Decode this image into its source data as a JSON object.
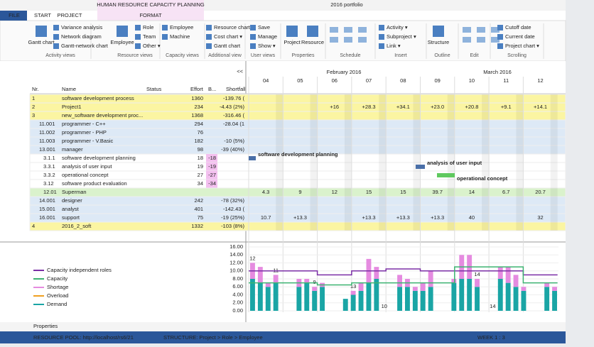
{
  "window": {
    "title": "2016 portfolio",
    "context_tab": "HUMAN RESOURCE CAPACITY PLANNING"
  },
  "tabs": [
    "FILE",
    "START",
    "PROJECT",
    "FORMAT"
  ],
  "ribbon_groups": [
    {
      "label": "Activity views",
      "items": [
        "Gantt chart",
        "Variance analysis",
        "Network diagram",
        "Gantt-network chart"
      ]
    },
    {
      "label": "Resource views",
      "items": [
        "Employee",
        "Role",
        "Team",
        "Other ▾"
      ]
    },
    {
      "label": "Capacity views",
      "items": [
        "Employee",
        "Machine"
      ]
    },
    {
      "label": "Additional view",
      "items": [
        "Resource chart ▾",
        "Cost chart ▾",
        "Gantt chart"
      ]
    },
    {
      "label": "User views",
      "items": [
        "Save",
        "Manage",
        "Show ▾"
      ]
    },
    {
      "label": "Properties",
      "items": [
        "Project",
        "Resource"
      ]
    },
    {
      "label": "Schedule",
      "items": []
    },
    {
      "label": "Insert",
      "items": [
        "Activity ▾",
        "Subproject ▾",
        "Link ▾"
      ]
    },
    {
      "label": "Outline",
      "items": [
        "Structure"
      ]
    },
    {
      "label": "Edit",
      "items": []
    },
    {
      "label": "Scrolling",
      "items": [
        "Cutoff date",
        "Current date",
        "Project chart ▾"
      ]
    }
  ],
  "table": {
    "columns": [
      "Nr.",
      "Name",
      "Status",
      "Effort",
      "B...",
      "Shortfall"
    ],
    "rows": [
      {
        "nr": "1",
        "name": "software development process",
        "effort": "1360",
        "b": "",
        "shortfall": "-139.76 (",
        "kind": "project"
      },
      {
        "nr": "2",
        "name": "Project1",
        "effort": "234",
        "b": "",
        "shortfall": "-4.43 (2%)",
        "kind": "project"
      },
      {
        "nr": "3",
        "name": "new_software development proc...",
        "effort": "1368",
        "b": "",
        "shortfall": "-316.46 (",
        "kind": "project"
      },
      {
        "nr": "11.001",
        "name": "programmer - C++",
        "effort": "294",
        "b": "",
        "shortfall": "-28.04 (1",
        "kind": "resource"
      },
      {
        "nr": "11.002",
        "name": "programmer - PHP",
        "effort": "76",
        "b": "",
        "shortfall": "",
        "kind": "resource"
      },
      {
        "nr": "11.003",
        "name": "programmer - V.Basic",
        "effort": "182",
        "b": "",
        "shortfall": "-10 (5%)",
        "kind": "resource"
      },
      {
        "nr": "13.001",
        "name": "manager",
        "effort": "98",
        "b": "",
        "shortfall": "-39 (40%)",
        "kind": "resource"
      },
      {
        "nr": "3.1.1",
        "name": "software development planning",
        "effort": "18",
        "b": "-18",
        "shortfall": "",
        "kind": "activity"
      },
      {
        "nr": "3.3.1",
        "name": "analysis of user input",
        "effort": "19",
        "b": "-19",
        "shortfall": "",
        "kind": "activity"
      },
      {
        "nr": "3.3.2",
        "name": "operational concept",
        "effort": "27",
        "b": "-27",
        "shortfall": "",
        "kind": "activity"
      },
      {
        "nr": "3.12",
        "name": "software product evaluation",
        "effort": "34",
        "b": "-34",
        "shortfall": "",
        "kind": "activity"
      },
      {
        "nr": "12.01",
        "name": "Superman",
        "effort": "",
        "b": "",
        "shortfall": "",
        "kind": "person"
      },
      {
        "nr": "14.001",
        "name": "designer",
        "effort": "242",
        "b": "",
        "shortfall": "-78 (32%)",
        "kind": "resource"
      },
      {
        "nr": "15.001",
        "name": "analyst",
        "effort": "401",
        "b": "",
        "shortfall": "-142.43 (",
        "kind": "resource"
      },
      {
        "nr": "16.001",
        "name": "support",
        "effort": "75",
        "b": "",
        "shortfall": "-19 (25%)",
        "kind": "resource"
      },
      {
        "nr": "4",
        "name": "2016_2_soft",
        "effort": "1332",
        "b": "",
        "shortfall": "-103 (8%)",
        "kind": "project"
      }
    ]
  },
  "timeline": {
    "collapse": "<<",
    "months": [
      "February 2016",
      "March 2016"
    ],
    "days": [
      "04",
      "05",
      "06",
      "07",
      "08",
      "09",
      "10",
      "11",
      "12"
    ],
    "cells": {
      "1": [
        "",
        "",
        "+16",
        "+28.3",
        "+34.1",
        "+23.0",
        "+20.8",
        "+9.1",
        "+14.1"
      ],
      "11": [
        "4.3",
        "9",
        "12",
        "15",
        "15",
        "39.7",
        "14",
        "6.7",
        "20.7"
      ],
      "14": [
        "10.7",
        "+13.3",
        "",
        "+13.3",
        "+13.3",
        "+13.3",
        "40",
        "",
        "32"
      ]
    },
    "bars": [
      {
        "row": 7,
        "label": "software development planning"
      },
      {
        "row": 8,
        "label": "analysis of user input"
      },
      {
        "row": 9,
        "label": "operational concept"
      }
    ]
  },
  "chart_data": {
    "type": "bar",
    "legend": [
      "Capacity independent roles",
      "Capacity",
      "Shortage",
      "Overload",
      "Demand"
    ],
    "ylim": [
      0,
      16
    ],
    "yticks": [
      {
        "value": 0,
        "label": "0.00"
      },
      {
        "value": 2,
        "label": "2.00"
      },
      {
        "value": 4,
        "label": "4.00"
      },
      {
        "value": 6,
        "label": "6.00"
      },
      {
        "value": 8,
        "label": "8.00"
      },
      {
        "value": 10,
        "label": "10.00"
      },
      {
        "value": 12,
        "label": "12.00"
      },
      {
        "value": 14,
        "label": "14.00"
      },
      {
        "value": 16,
        "label": "16.00"
      }
    ],
    "series": [
      {
        "name": "Capacity independent roles",
        "color": "#7b2fa6",
        "values": [
          10,
          10,
          9,
          10,
          10.5,
          10,
          10,
          10,
          9
        ]
      },
      {
        "name": "Capacity",
        "color": "#3cb371",
        "values": [
          7,
          7,
          6.5,
          7,
          7,
          7,
          11,
          11,
          7
        ]
      },
      {
        "name": "Demand",
        "color": "#1aa5a5",
        "values": [
          8,
          7,
          6,
          7,
          0,
          0,
          6,
          7,
          5,
          6,
          0,
          0,
          3,
          4,
          5,
          7,
          8,
          0,
          0,
          6,
          6,
          5,
          5,
          6,
          0,
          0,
          7,
          8,
          8,
          6,
          0,
          0,
          8,
          7,
          6,
          5,
          0,
          0,
          6,
          5
        ]
      },
      {
        "name": "Shortage",
        "color": "#e58be0",
        "values": [
          4,
          4,
          1,
          2,
          0,
          0,
          2,
          1,
          1,
          1,
          0,
          0,
          0,
          1,
          2,
          6,
          3,
          0,
          0,
          3,
          2,
          1,
          2,
          4,
          0,
          0,
          1,
          6,
          6,
          2,
          0,
          0,
          3,
          4,
          3,
          1,
          0,
          0,
          1,
          1
        ]
      }
    ],
    "data_labels": [
      {
        "index": 0,
        "label": "12"
      },
      {
        "index": 3,
        "label": "11"
      },
      {
        "index": 8,
        "label": "9"
      },
      {
        "index": 13,
        "label": "13"
      },
      {
        "index": 17,
        "label": "10"
      },
      {
        "index": 29,
        "label": "14"
      },
      {
        "index": 31,
        "label": "14"
      }
    ]
  },
  "footer": {
    "panel": "Properties",
    "pool": "RESOURCE POOL: http://localhost/rs6/21",
    "structure": "STRUCTURE: Project > Role > Employee",
    "week": "WEEK 1 : 3"
  }
}
